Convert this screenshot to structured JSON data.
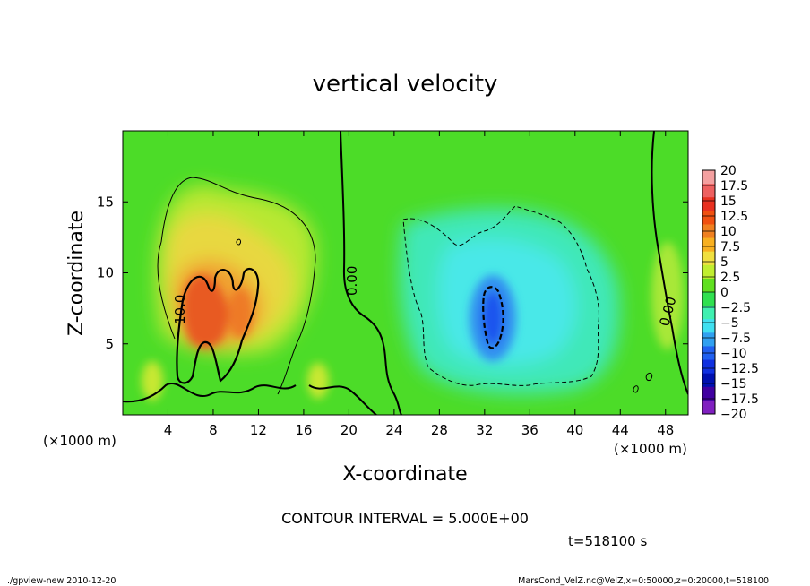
{
  "chart_data": {
    "type": "heatmap",
    "title": "vertical velocity",
    "xlabel": "X-coordinate",
    "ylabel": "Z-coordinate",
    "x_unit": "(×1000 m)",
    "y_unit": "(×1000 m)",
    "xlim": [
      0,
      50
    ],
    "ylim": [
      0,
      20
    ],
    "x_ticks": [
      "4",
      "8",
      "12",
      "16",
      "20",
      "24",
      "28",
      "32",
      "36",
      "40",
      "44",
      "48"
    ],
    "y_ticks": [
      "5",
      "10",
      "15"
    ],
    "colorbar_labels": [
      "20",
      "17.5",
      "15",
      "12.5",
      "10",
      "7.5",
      "5",
      "2.5",
      "0",
      "−2.5",
      "−5",
      "−7.5",
      "−10",
      "−12.5",
      "−15",
      "−17.5",
      "−20"
    ],
    "colorbar_colors": [
      "#f4a0a0",
      "#ee6060",
      "#e83020",
      "#f05010",
      "#f08020",
      "#f8b020",
      "#f0e040",
      "#c0ee30",
      "#60e020",
      "#30e050",
      "#40f0b0",
      "#40e0f0",
      "#30a0f0",
      "#2060f0",
      "#1030e0",
      "#0010b0",
      "#4000a0",
      "#8020c0"
    ],
    "contour_labels": [
      "10.0",
      "0.00",
      "0.00"
    ],
    "contour_interval": "CONTOUR INTERVAL = 5.000E+00",
    "time_label": "t=518100 s",
    "footer_left": "./gpview-new   2010-12-20",
    "footer_right": "MarsCond_VelZ.nc@VelZ,x=0:50000,z=0:20000,t=518100",
    "features": [
      {
        "kind": "updraft",
        "x": 7,
        "z": 7.5,
        "peak": 13
      },
      {
        "kind": "downdraft",
        "x": 32.5,
        "z": 6.5,
        "peak": -11
      }
    ]
  }
}
